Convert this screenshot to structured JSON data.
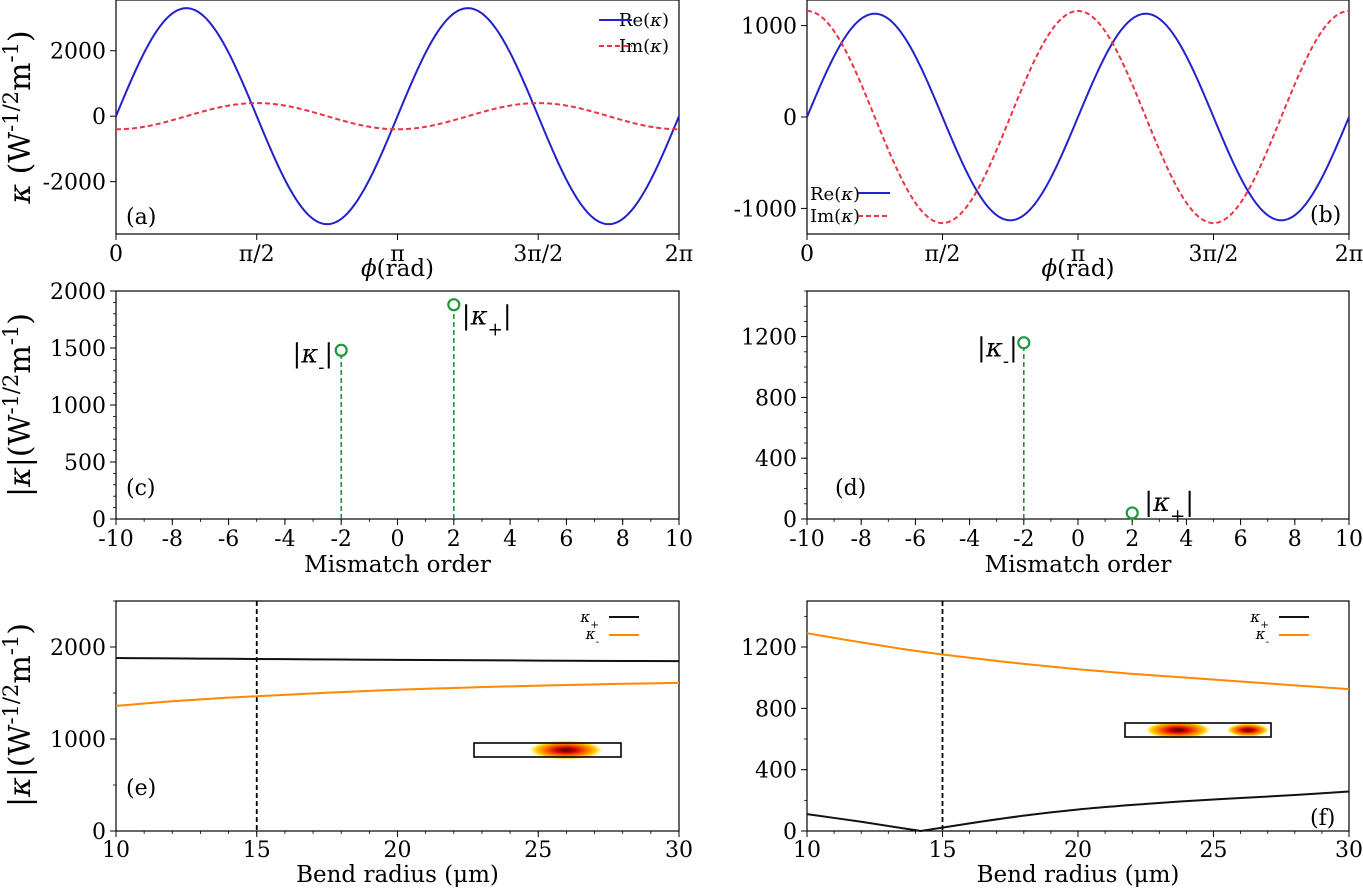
{
  "chart_data": [
    {
      "panel": "(a)",
      "type": "line",
      "xlabel": "ϕ(rad)",
      "ylabel": "κ (W-1/2m-1)",
      "xtick_labels": [
        "0",
        "π/2",
        "π",
        "3π/2",
        "2π"
      ],
      "ytick_labels": [
        "-2000",
        "0",
        "2000"
      ],
      "xlim": [
        0,
        6.2832
      ],
      "ylim": [
        -3600,
        3550
      ],
      "series": [
        {
          "name": "Re(κ)",
          "amplitude": 3300,
          "function": "A·sin(2ϕ)",
          "color": "#2222cc"
        },
        {
          "name": "Im(κ)",
          "amplitude": 400,
          "function": "-A·cos(2ϕ)",
          "color": "#ee3344",
          "dashed": true
        }
      ],
      "legend": "top-right"
    },
    {
      "panel": "(b)",
      "type": "line",
      "xlabel": "ϕ(rad)",
      "ylabel": "",
      "xtick_labels": [
        "0",
        "π/2",
        "π",
        "3π/2",
        "2π"
      ],
      "ytick_labels": [
        "-1000",
        "0",
        "1000"
      ],
      "xlim": [
        0,
        6.2832
      ],
      "ylim": [
        -1280,
        1280
      ],
      "series": [
        {
          "name": "Re(κ)",
          "amplitude": 1130,
          "function": "A·sin(2ϕ)",
          "color": "#2222cc"
        },
        {
          "name": "Im(κ)",
          "amplitude": 1160,
          "function": "A·cos(2ϕ)",
          "color": "#ee3344",
          "dashed": true
        }
      ],
      "legend": "bottom-left"
    },
    {
      "panel": "(c)",
      "type": "scatter",
      "xlabel": "Mismatch order",
      "ylabel": "|κ|(W-1/2m-1)",
      "xticks": [
        -10,
        -8,
        -6,
        -4,
        -2,
        0,
        2,
        4,
        6,
        8,
        10
      ],
      "yticks": [
        0,
        500,
        1000,
        1500,
        2000
      ],
      "xlim": [
        -10,
        10
      ],
      "ylim": [
        0,
        2000
      ],
      "points": [
        {
          "x": -2,
          "y": 1480,
          "label": "|κ-|"
        },
        {
          "x": 2,
          "y": 1880,
          "label": "|κ+|"
        }
      ]
    },
    {
      "panel": "(d)",
      "type": "scatter",
      "xlabel": "Mismatch order",
      "ylabel": "",
      "xticks": [
        -10,
        -8,
        -6,
        -4,
        -2,
        0,
        2,
        4,
        6,
        8,
        10
      ],
      "yticks": [
        0,
        400,
        800,
        1200
      ],
      "xlim": [
        -10,
        10
      ],
      "ylim": [
        0,
        1500
      ],
      "points": [
        {
          "x": -2,
          "y": 1160,
          "label": "|κ-|"
        },
        {
          "x": 2,
          "y": 40,
          "label": "|κ+|"
        }
      ]
    },
    {
      "panel": "(e)",
      "type": "line",
      "xlabel": "Bend radius (μm)",
      "ylabel": "|κ|(W-1/2m-1)",
      "xticks": [
        10,
        15,
        20,
        25,
        30
      ],
      "yticks": [
        0,
        1000,
        2000
      ],
      "xlim": [
        10,
        30
      ],
      "ylim": [
        0,
        2500
      ],
      "vline_x": 15,
      "x": [
        10,
        12,
        14,
        16,
        18,
        20,
        22,
        24,
        26,
        28,
        30
      ],
      "series": [
        {
          "name": "κ+",
          "values": [
            1880,
            1876,
            1872,
            1868,
            1864,
            1860,
            1857,
            1854,
            1851,
            1848,
            1846
          ],
          "color": "#111111"
        },
        {
          "name": "κ-",
          "values": [
            1360,
            1410,
            1450,
            1480,
            1510,
            1535,
            1555,
            1572,
            1587,
            1600,
            1610
          ],
          "color": "#ff8800"
        }
      ],
      "legend": "top-right"
    },
    {
      "panel": "(f)",
      "type": "line",
      "xlabel": "Bend radius (μm)",
      "ylabel": "",
      "xticks": [
        10,
        15,
        20,
        25,
        30
      ],
      "yticks": [
        0,
        400,
        800,
        1200
      ],
      "xlim": [
        10,
        30
      ],
      "ylim": [
        0,
        1500
      ],
      "vline_x": 15,
      "x": [
        10,
        12,
        14.2,
        16,
        18,
        20,
        22,
        24,
        26,
        28,
        30
      ],
      "series": [
        {
          "name": "κ+",
          "values": [
            110,
            60,
            0,
            50,
            100,
            140,
            170,
            195,
            215,
            235,
            258
          ],
          "color": "#111111"
        },
        {
          "name": "κ-",
          "values": [
            1290,
            1230,
            1170,
            1130,
            1090,
            1055,
            1025,
            1000,
            975,
            950,
            925
          ],
          "color": "#ff8800"
        }
      ],
      "legend": "top-right"
    }
  ]
}
